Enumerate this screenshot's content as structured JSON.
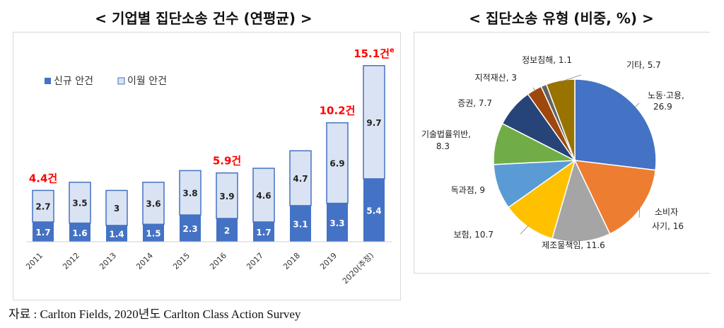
{
  "titles": {
    "left": "< 기업별 집단소송 건수 (연평균) >",
    "right": "< 집단소송 유형 (비중, %) >"
  },
  "source": "자료 : Carlton Fields, 2020년도 Carlton Class Action Survey",
  "colors": {
    "new": "#4472c4",
    "carry": "#dae3f3",
    "carry_border": "#4472c4",
    "highlight": "#ff0000"
  },
  "chart_data": [
    {
      "type": "bar",
      "stacked": true,
      "categories": [
        "2011",
        "2012",
        "2013",
        "2014",
        "2015",
        "2016",
        "2017",
        "2018",
        "2019",
        "2020(추정)"
      ],
      "series": [
        {
          "name": "신규 안건",
          "values": [
            1.7,
            1.6,
            1.4,
            1.5,
            2.3,
            2,
            1.7,
            3.1,
            3.3,
            5.4
          ]
        },
        {
          "name": "이월 안건",
          "values": [
            2.7,
            3.5,
            3,
            3.6,
            3.8,
            3.9,
            4.6,
            4.7,
            6.9,
            9.7
          ]
        }
      ],
      "callouts": [
        {
          "index": 0,
          "text": "4.4건"
        },
        {
          "index": 5,
          "text": "5.9건"
        },
        {
          "index": 8,
          "text": "10.2건"
        },
        {
          "index": 9,
          "text": "15.1건",
          "sup": "e"
        }
      ],
      "legend_position": "top-left",
      "ylim": [
        0,
        16
      ]
    },
    {
      "type": "pie",
      "slices": [
        {
          "label": "노동·고용",
          "value": 26.9,
          "color": "#4472c4"
        },
        {
          "label": "소비자 사기",
          "value": 16,
          "color": "#ed7d31"
        },
        {
          "label": "제조물책임",
          "value": 11.6,
          "color": "#a5a5a5"
        },
        {
          "label": "보험",
          "value": 10.7,
          "color": "#ffc000"
        },
        {
          "label": "독과점",
          "value": 9,
          "color": "#5b9bd5"
        },
        {
          "label": "기술법률위반",
          "value": 8.3,
          "color": "#70ad47"
        },
        {
          "label": "증권",
          "value": 7.7,
          "color": "#264478"
        },
        {
          "label": "지적재산",
          "value": 3,
          "color": "#9e480e"
        },
        {
          "label": "정보침해",
          "value": 1.1,
          "color": "#636363"
        },
        {
          "label": "기타",
          "value": 5.7,
          "color": "#997300"
        }
      ]
    }
  ]
}
